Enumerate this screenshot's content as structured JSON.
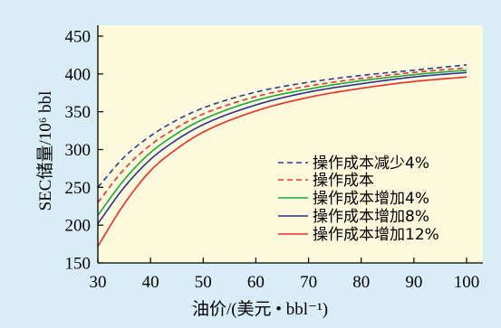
{
  "colors": {
    "background": "#d9edf7",
    "plot_background": "#fdf9dd",
    "axis": "#000000"
  },
  "chart_data": {
    "type": "line",
    "title": "",
    "xlabel": "油价/(美元 • bbl⁻¹)",
    "ylabel": "SEC储量/10⁶ bbl",
    "xlim": [
      30,
      100
    ],
    "ylim": [
      150,
      450
    ],
    "xticks": [
      30,
      40,
      50,
      60,
      70,
      80,
      90,
      100
    ],
    "yticks": [
      150,
      200,
      250,
      300,
      350,
      400,
      450
    ],
    "grid": false,
    "legend_position": "bottom-right",
    "x": [
      30,
      35,
      40,
      45,
      50,
      60,
      70,
      80,
      90,
      100
    ],
    "series": [
      {
        "name": "操作成本减少4%",
        "color": "#2b3a8f",
        "line_style": "dashed",
        "values": [
          250,
          290,
          318,
          339,
          355,
          376,
          389,
          398,
          405,
          412
        ]
      },
      {
        "name": "操作成本",
        "color": "#e8302a",
        "line_style": "dashed",
        "values": [
          230,
          274,
          306,
          329,
          347,
          370,
          384,
          394,
          402,
          408
        ]
      },
      {
        "name": "操作成本增加4%",
        "color": "#1aa83a",
        "line_style": "solid",
        "values": [
          213,
          260,
          296,
          321,
          340,
          365,
          380,
          391,
          399,
          405
        ]
      },
      {
        "name": "操作成本增加8%",
        "color": "#2b2f8f",
        "line_style": "solid",
        "values": [
          202,
          250,
          287,
          313,
          333,
          359,
          376,
          387,
          396,
          402
        ]
      },
      {
        "name": "操作成本增加12%",
        "color": "#ee2b24",
        "line_style": "solid",
        "values": [
          172,
          228,
          272,
          301,
          323,
          351,
          369,
          381,
          390,
          396
        ]
      }
    ]
  }
}
